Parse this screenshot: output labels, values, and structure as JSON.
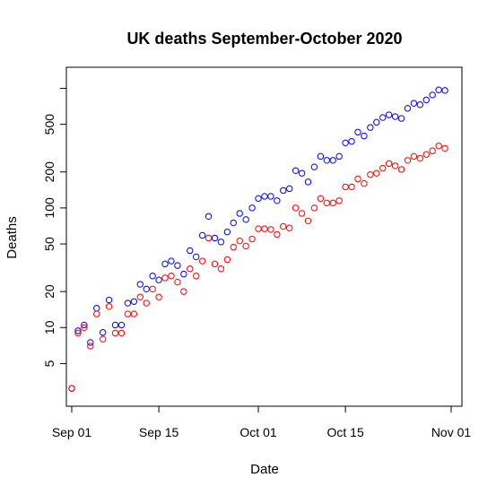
{
  "chart_data": {
    "type": "scatter",
    "title": "UK deaths September-October 2020",
    "xlabel": "Date",
    "ylabel": "Deaths",
    "x_scale": "date",
    "y_scale": "log",
    "xlim": [
      "2020-08-31",
      "2020-11-01"
    ],
    "ylim": [
      2.2,
      1500
    ],
    "x_ticks": [
      {
        "date": "2020-09-01",
        "label": "Sep 01"
      },
      {
        "date": "2020-09-15",
        "label": "Sep 15"
      },
      {
        "date": "2020-10-01",
        "label": "Oct 01"
      },
      {
        "date": "2020-10-15",
        "label": "Oct 15"
      },
      {
        "date": "2020-11-01",
        "label": "Nov 01"
      }
    ],
    "y_ticks": [
      {
        "value": 5,
        "label": "5"
      },
      {
        "value": 10,
        "label": "10"
      },
      {
        "value": 20,
        "label": "20"
      },
      {
        "value": 50,
        "label": "50"
      },
      {
        "value": 100,
        "label": "100"
      },
      {
        "value": 200,
        "label": "200"
      },
      {
        "value": 500,
        "label": "500"
      },
      {
        "value": 1000,
        "label": ""
      }
    ],
    "grid": false,
    "legend": "none",
    "dates": [
      "2020-09-01",
      "2020-09-02",
      "2020-09-03",
      "2020-09-04",
      "2020-09-05",
      "2020-09-06",
      "2020-09-07",
      "2020-09-08",
      "2020-09-09",
      "2020-09-10",
      "2020-09-11",
      "2020-09-12",
      "2020-09-13",
      "2020-09-14",
      "2020-09-15",
      "2020-09-16",
      "2020-09-17",
      "2020-09-18",
      "2020-09-19",
      "2020-09-20",
      "2020-09-21",
      "2020-09-22",
      "2020-09-23",
      "2020-09-24",
      "2020-09-25",
      "2020-09-26",
      "2020-09-27",
      "2020-09-28",
      "2020-09-29",
      "2020-09-30",
      "2020-10-01",
      "2020-10-02",
      "2020-10-03",
      "2020-10-04",
      "2020-10-05",
      "2020-10-06",
      "2020-10-07",
      "2020-10-08",
      "2020-10-09",
      "2020-10-10",
      "2020-10-11",
      "2020-10-12",
      "2020-10-13",
      "2020-10-14",
      "2020-10-15",
      "2020-10-16",
      "2020-10-17",
      "2020-10-18",
      "2020-10-19",
      "2020-10-20",
      "2020-10-21",
      "2020-10-22",
      "2020-10-23",
      "2020-10-24",
      "2020-10-25",
      "2020-10-26",
      "2020-10-27",
      "2020-10-28",
      "2020-10-29",
      "2020-10-30",
      "2020-10-31"
    ],
    "series": [
      {
        "color": "#0000ff",
        "values": [
          3.1,
          9.4,
          10.5,
          7.5,
          14.5,
          9.1,
          17,
          10.5,
          10.5,
          16,
          16.5,
          23,
          21,
          27,
          25,
          34,
          36,
          33,
          28,
          44,
          39,
          59,
          85,
          56,
          52,
          63,
          75,
          90,
          80,
          100,
          120,
          125,
          125,
          115,
          140,
          145,
          205,
          195,
          165,
          220,
          270,
          250,
          250,
          270,
          350,
          360,
          430,
          400,
          470,
          520,
          570,
          600,
          580,
          560,
          680,
          750,
          730,
          800,
          880,
          970,
          960
        ]
      },
      {
        "color": "#ff0000",
        "values": [
          3.1,
          9.0,
          10.0,
          7.0,
          13,
          8.0,
          15,
          9.0,
          9.0,
          13,
          13,
          18,
          16,
          21,
          18,
          26,
          27,
          24,
          20,
          31,
          27,
          36,
          56,
          34,
          31,
          37,
          47,
          53,
          48,
          55,
          67,
          67,
          66,
          60,
          70,
          68,
          100,
          90,
          78,
          100,
          120,
          110,
          110,
          115,
          150,
          150,
          175,
          160,
          190,
          195,
          215,
          235,
          225,
          210,
          250,
          270,
          260,
          280,
          300,
          330,
          315
        ]
      }
    ]
  }
}
